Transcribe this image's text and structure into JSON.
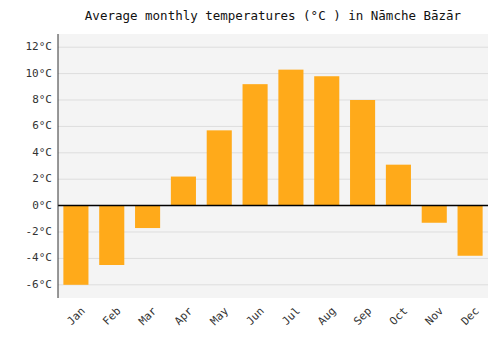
{
  "chart_data": {
    "type": "bar",
    "title": "Average monthly temperatures (°C ) in Nāmche Bāzār",
    "categories": [
      "Jan",
      "Feb",
      "Mar",
      "Apr",
      "May",
      "Jun",
      "Jul",
      "Aug",
      "Sep",
      "Oct",
      "Nov",
      "Dec"
    ],
    "values": [
      -6,
      -4.5,
      -1.7,
      2.2,
      5.7,
      9.2,
      10.3,
      9.8,
      8.0,
      3.1,
      -1.3,
      -3.8
    ],
    "color": "#FFAA1A",
    "ylim": [
      -7,
      13
    ],
    "yticks": [
      {
        "value": -6,
        "label": "-6°C"
      },
      {
        "value": -4,
        "label": "-4°C"
      },
      {
        "value": -2,
        "label": "-2°C"
      },
      {
        "value": 0,
        "label": "0°C"
      },
      {
        "value": 2,
        "label": "2°C"
      },
      {
        "value": 4,
        "label": "4°C"
      },
      {
        "value": 6,
        "label": "6°C"
      },
      {
        "value": 8,
        "label": "8°C"
      },
      {
        "value": 10,
        "label": "10°C"
      },
      {
        "value": 12,
        "label": "12°C"
      }
    ],
    "grid": true
  }
}
